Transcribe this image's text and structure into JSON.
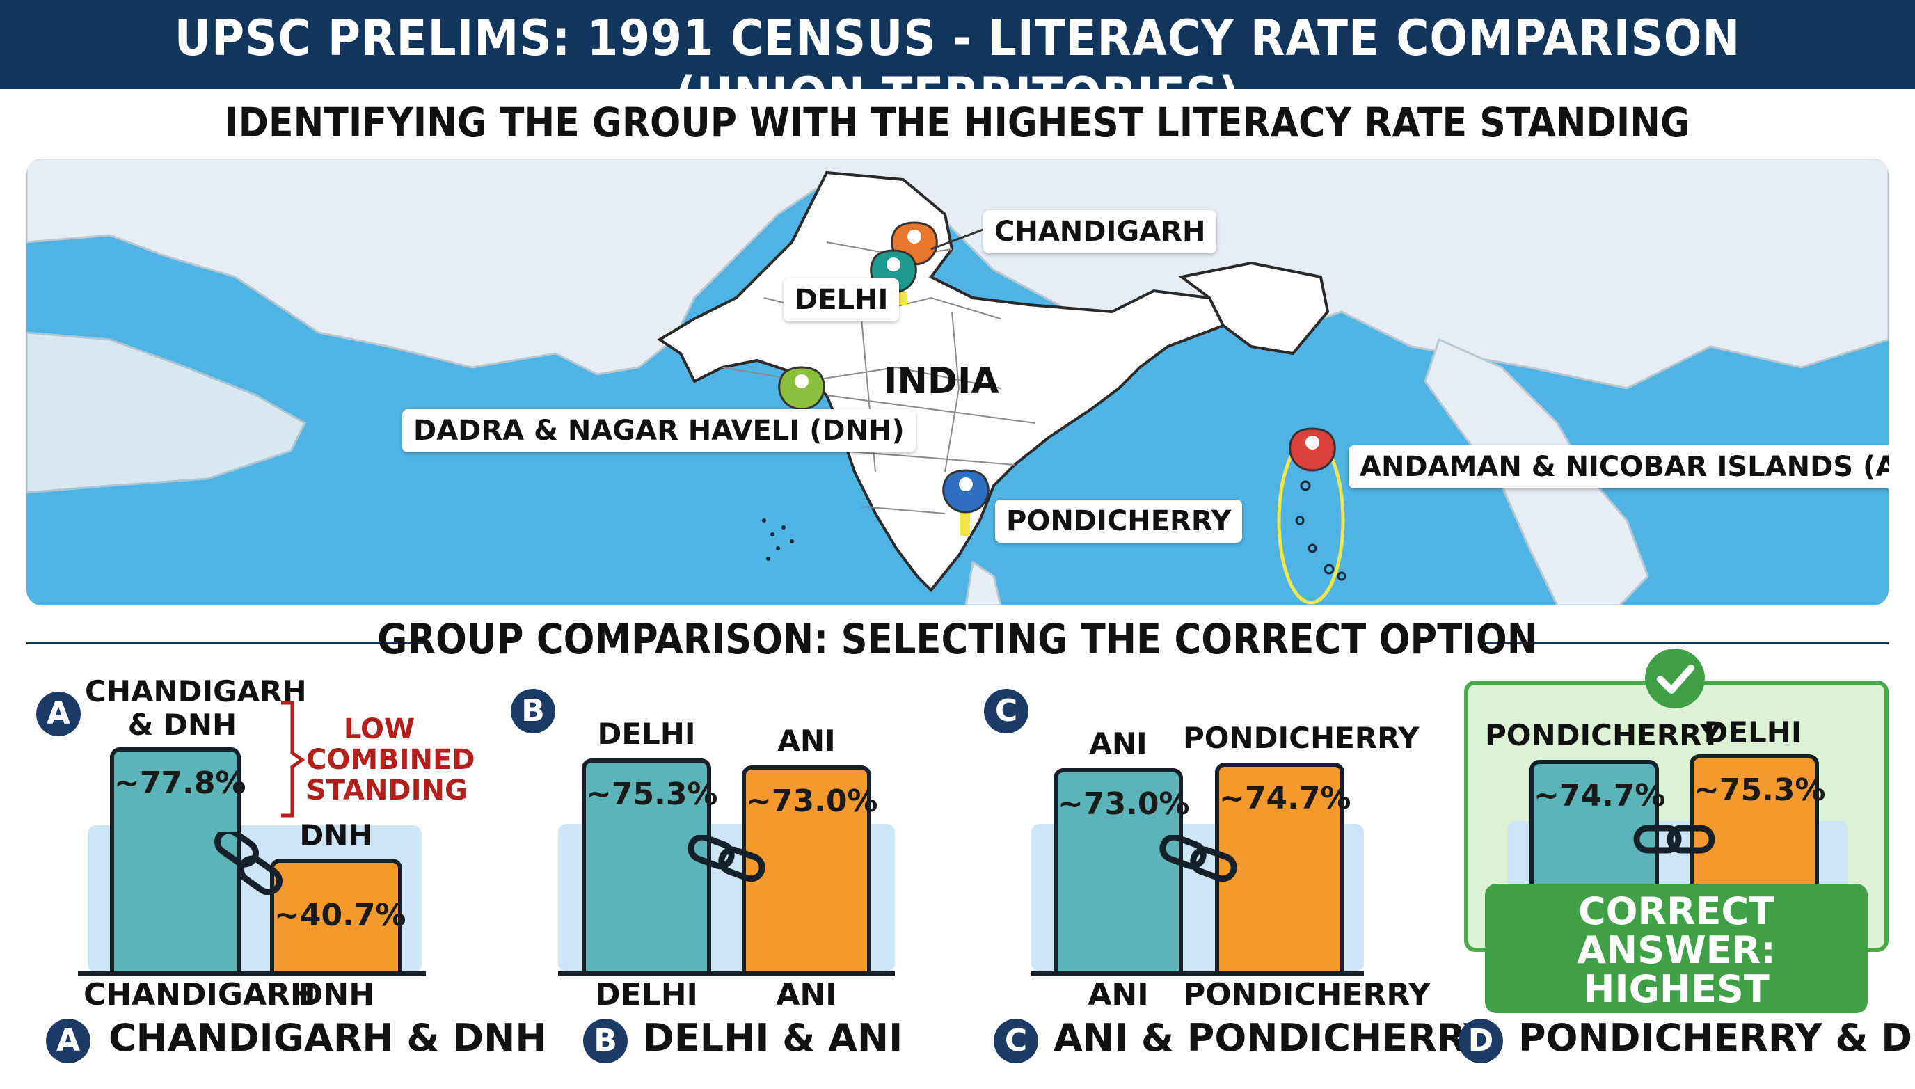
{
  "header": {
    "title": "UPSC PRELIMS: 1991 CENSUS - LITERACY RATE COMPARISON (UNION TERRITORIES)",
    "subtitle": "IDENTIFYING THE GROUP WITH THE HIGHEST LITERACY RATE STANDING"
  },
  "map": {
    "country_label": "INDIA",
    "markers": [
      {
        "label": "CHANDIGARH",
        "color": "#e8762c"
      },
      {
        "label": "DELHI",
        "color": "#1f9a8f"
      },
      {
        "label": "DADRA & NAGAR HAVELI (DNH)",
        "color": "#8bbf3c"
      },
      {
        "label": "PONDICHERRY",
        "color": "#2f6fc0"
      },
      {
        "label": "ANDAMAN & NICOBAR ISLANDS (ANI)",
        "color": "#d8423a"
      }
    ],
    "colors": {
      "sea": "#4fb3e3",
      "land": "#ffffff",
      "neighbours": "#e6eef3",
      "highlight": "#f2e64a"
    }
  },
  "comparison": {
    "section_title": "GROUP COMPARISON: SELECTING THE CORRECT OPTION",
    "options": [
      {
        "letter": "A",
        "top_label": "CHANDIGARH & DNH",
        "caption": "CHANDIGARH & DNH",
        "note": "LOW COMBINED STANDING",
        "bars": [
          {
            "name": "CHANDIGARH",
            "value_label": "~77.8%",
            "value": 77.8,
            "color": "teal",
            "top_label": ""
          },
          {
            "name": "DNH",
            "value_label": "~40.7%",
            "value": 40.7,
            "color": "orange",
            "top_label": "DNH"
          }
        ]
      },
      {
        "letter": "B",
        "caption": "DELHI & ANI",
        "bars": [
          {
            "name": "DELHI",
            "value_label": "~75.3%",
            "value": 75.3,
            "color": "teal",
            "top_label": "DELHI"
          },
          {
            "name": "ANI",
            "value_label": "~73.0%",
            "value": 73.0,
            "color": "orange",
            "top_label": "ANI"
          }
        ]
      },
      {
        "letter": "C",
        "caption": "ANI & PONDICHERRY",
        "bars": [
          {
            "name": "ANI",
            "value_label": "~73.0%",
            "value": 73.0,
            "color": "teal",
            "top_label": "ANI"
          },
          {
            "name": "PONDICHERRY",
            "value_label": "~74.7%",
            "value": 74.7,
            "color": "orange",
            "top_label": "PONDICHERRY"
          }
        ]
      },
      {
        "letter": "D",
        "caption": "PONDICHERRY & DELHI",
        "correct_banner": "CORRECT ANSWER: HIGHEST COMBINED LITERACY",
        "bars": [
          {
            "name": "PONDICHERRY",
            "value_label": "~74.7%",
            "value": 74.7,
            "color": "teal",
            "top_label": "PONDICHERRY"
          },
          {
            "name": "DELHI",
            "value_label": "~75.3%",
            "value": 75.3,
            "color": "orange",
            "top_label": "DELHI"
          }
        ]
      }
    ]
  }
}
